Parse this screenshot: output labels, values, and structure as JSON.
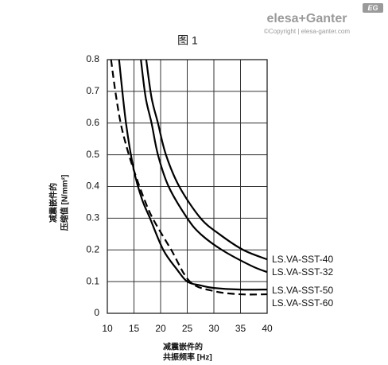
{
  "logo": {
    "brand": "elesa+Ganter",
    "copyright": "©Copyright | elesa-ganter.com",
    "badge": "EG"
  },
  "chart_data": {
    "type": "line",
    "title": "图 1",
    "y_label": [
      "减震嵌件的",
      "压缩值 [N/mm²]"
    ],
    "x_label": [
      "减震嵌件的",
      "共振频率 [Hz]"
    ],
    "xlim": [
      10,
      40
    ],
    "xticks": [
      10,
      15,
      20,
      25,
      30,
      35,
      40
    ],
    "ylim": [
      0,
      0.8
    ],
    "yticks": [
      0,
      0.1,
      0.2,
      0.3,
      0.4,
      0.5,
      0.6,
      0.7,
      0.8
    ],
    "grid": true,
    "series": [
      {
        "name": "LS.VA-SST-40",
        "color": "#000000",
        "dashed": false,
        "x": [
          17.3,
          18.3,
          19.5,
          21,
          23.5,
          27.5,
          31,
          35.5,
          40
        ],
        "values": [
          0.8,
          0.68,
          0.6,
          0.5,
          0.4,
          0.3,
          0.25,
          0.2,
          0.17
        ]
      },
      {
        "name": "LS.VA-SST-32",
        "color": "#000000",
        "dashed": false,
        "x": [
          16.3,
          17.2,
          18.3,
          19.5,
          21.5,
          25,
          27.5,
          31.5,
          37,
          40
        ],
        "values": [
          0.8,
          0.68,
          0.6,
          0.5,
          0.4,
          0.3,
          0.25,
          0.2,
          0.15,
          0.13
        ]
      },
      {
        "name": "LS.VA-SST-50",
        "color": "#000000",
        "dashed": false,
        "x": [
          12.2,
          13.5,
          15,
          16.5,
          18,
          20.5,
          23,
          25,
          27.5,
          30,
          35,
          40
        ],
        "values": [
          0.8,
          0.6,
          0.45,
          0.36,
          0.3,
          0.2,
          0.14,
          0.1,
          0.088,
          0.08,
          0.075,
          0.075
        ]
      },
      {
        "name": "LS.VA-SST-60",
        "color": "#000000",
        "dashed": true,
        "x": [
          10.7,
          11.5,
          12.5,
          13.7,
          15,
          16.7,
          18.5,
          22,
          25.5,
          30,
          35,
          40
        ],
        "values": [
          0.8,
          0.7,
          0.6,
          0.52,
          0.45,
          0.37,
          0.3,
          0.2,
          0.1,
          0.07,
          0.06,
          0.06
        ]
      }
    ]
  }
}
